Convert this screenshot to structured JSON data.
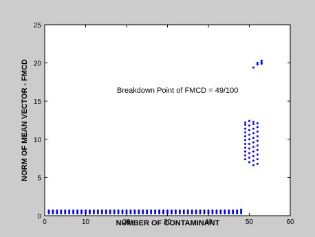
{
  "chart_data": {
    "type": "scatter",
    "title": "",
    "xlabel": "NUMBER OF CONTAMINANT",
    "ylabel": "NORM OF MEAN VECTOR - FMCD",
    "xlim": [
      0,
      60
    ],
    "ylim": [
      0,
      25
    ],
    "xticks": [
      0,
      10,
      20,
      30,
      40,
      50,
      60
    ],
    "yticks": [
      0,
      5,
      10,
      15,
      20,
      25
    ],
    "xtick_labels": [
      "0",
      "10",
      "20",
      "30",
      "40",
      "50",
      "60"
    ],
    "ytick_labels": [
      "0",
      "5",
      "10",
      "15",
      "20",
      "25"
    ],
    "grid": false,
    "marker_color": "#0000ff",
    "annotation": "Breakdown Point of FMCD = 49/100",
    "series": [
      {
        "description_points": "low-norm region for 1-48 contaminants",
        "x_range": [
          1,
          48
        ],
        "y_values": [
          0.3,
          0.4,
          0.5,
          0.6,
          0.7
        ]
      },
      {
        "description_points": "vertical clusters near breakdown",
        "points": [
          [
            48,
            0.8
          ],
          [
            49,
            7.4
          ],
          [
            49,
            7.9
          ],
          [
            49,
            8.4
          ],
          [
            49,
            8.9
          ],
          [
            49,
            9.4
          ],
          [
            49,
            9.9
          ],
          [
            49,
            10.4
          ],
          [
            49,
            10.9
          ],
          [
            49,
            11.4
          ],
          [
            49,
            11.9
          ],
          [
            49,
            12.2
          ],
          [
            50,
            7.0
          ],
          [
            50,
            7.6
          ],
          [
            50,
            8.2
          ],
          [
            50,
            8.8
          ],
          [
            50,
            9.4
          ],
          [
            50,
            10.0
          ],
          [
            50,
            10.6
          ],
          [
            50,
            11.2
          ],
          [
            50,
            11.8
          ],
          [
            50,
            12.4
          ],
          [
            51,
            6.6
          ],
          [
            51,
            7.2
          ],
          [
            51,
            7.8
          ],
          [
            51,
            8.4
          ],
          [
            51,
            9.0
          ],
          [
            51,
            9.6
          ],
          [
            51,
            10.2
          ],
          [
            51,
            10.8
          ],
          [
            51,
            11.4
          ],
          [
            51,
            12.0
          ],
          [
            51,
            12.3
          ],
          [
            52,
            6.8
          ],
          [
            52,
            7.4
          ],
          [
            52,
            8.0
          ],
          [
            52,
            8.6
          ],
          [
            52,
            9.2
          ],
          [
            52,
            9.8
          ],
          [
            52,
            10.4
          ],
          [
            52,
            11.0
          ],
          [
            52,
            11.6
          ],
          [
            52,
            12.1
          ],
          [
            51,
            19.4
          ],
          [
            52,
            19.8
          ],
          [
            52,
            20.0
          ],
          [
            53,
            19.9
          ],
          [
            53,
            20.1
          ],
          [
            53,
            20.3
          ]
        ]
      }
    ]
  }
}
